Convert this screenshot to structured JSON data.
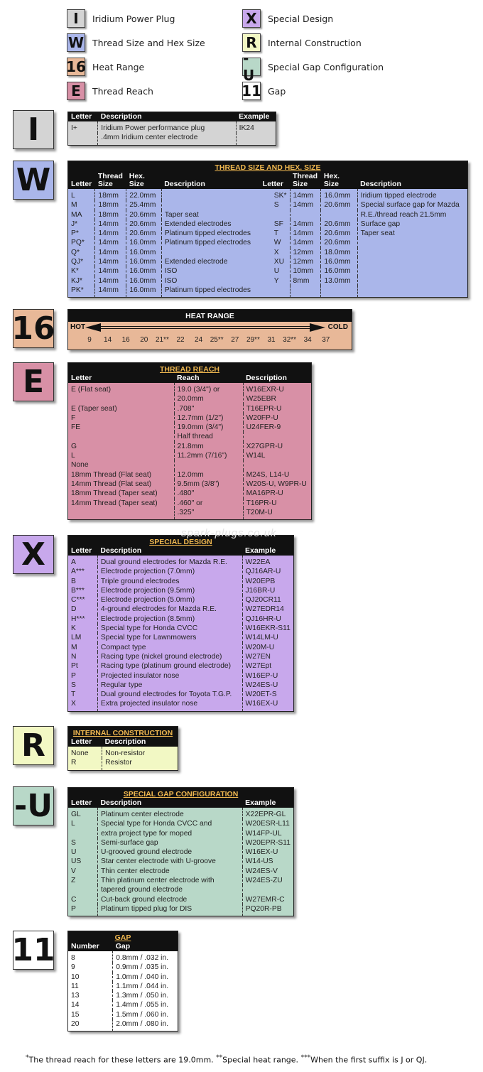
{
  "legend": [
    {
      "code": "I",
      "label": "Iridium Power Plug",
      "color": "#d4d4d4"
    },
    {
      "code": "W",
      "label": "Thread Size and Hex Size",
      "color": "#aab6ea"
    },
    {
      "code": "16",
      "label": "Heat Range",
      "color": "#e8b898"
    },
    {
      "code": "E",
      "label": "Thread Reach",
      "color": "#d890a6"
    },
    {
      "code": "X",
      "label": "Special Design",
      "color": "#c8a8ec"
    },
    {
      "code": "R",
      "label": "Internal Construction",
      "color": "#f2f8c4"
    },
    {
      "code": "-U",
      "label": "Special Gap Configuration",
      "color": "#b8d8c8"
    },
    {
      "code": "11",
      "label": "Gap",
      "color": "#ffffff"
    }
  ],
  "watermark": "spark-plugs.co.uk",
  "tables": {
    "I": {
      "title": "",
      "headers": [
        "Letter",
        "Description",
        "Example"
      ],
      "rows": [
        [
          "I+",
          "Iridium Power performance plug",
          "IK24"
        ],
        [
          "",
          ".4mm Iridium center electrode",
          ""
        ]
      ]
    },
    "W": {
      "title": "THREAD SIZE AND HEX. SIZE",
      "headers": [
        "Letter",
        "Thread\nSize",
        "Hex.\nSize",
        "Description",
        "Letter",
        "Thread\nSize",
        "Hex.\nSize",
        "Description"
      ],
      "rows": [
        [
          "L",
          "18mm",
          "22.0mm",
          "",
          "SK*",
          "14mm",
          "16.0mm",
          "Iridium tipped electrode"
        ],
        [
          "M",
          "18mm",
          "25.4mm",
          "",
          "S",
          "14mm",
          "20.6mm",
          "Special surface gap for Mazda"
        ],
        [
          "MA",
          "18mm",
          "20.6mm",
          "Taper seat",
          "",
          "",
          "",
          "R.E./thread reach 21.5mm"
        ],
        [
          "J*",
          "14mm",
          "20.6mm",
          "Extended electrodes",
          "SF",
          "14mm",
          "20.6mm",
          "Surface gap"
        ],
        [
          "P*",
          "14mm",
          "20.6mm",
          "Platinum tipped electrodes",
          "T",
          "14mm",
          "20.6mm",
          "Taper seat"
        ],
        [
          "PQ*",
          "14mm",
          "16.0mm",
          "Platinum tipped electrodes",
          "W",
          "14mm",
          "20.6mm",
          ""
        ],
        [
          "Q*",
          "14mm",
          "16.0mm",
          "",
          "X",
          "12mm",
          "18.0mm",
          ""
        ],
        [
          "QJ*",
          "14mm",
          "16.0mm",
          "Extended electrode",
          "XU",
          "12mm",
          "16.0mm",
          ""
        ],
        [
          "K*",
          "14mm",
          "16.0mm",
          "ISO",
          "U",
          "10mm",
          "16.0mm",
          ""
        ],
        [
          "KJ*",
          "14mm",
          "16.0mm",
          "ISO",
          "Y",
          "8mm",
          "13.0mm",
          ""
        ],
        [
          "PK*",
          "14mm",
          "16.0mm",
          "Platinum tipped electrodes",
          "",
          "",
          "",
          ""
        ]
      ]
    },
    "E": {
      "title": "THREAD REACH",
      "headers": [
        "Letter",
        "Reach",
        "Description"
      ],
      "rows": [
        [
          "E (Flat seat)",
          "19.0 (3/4\") or",
          "W16EXR-U"
        ],
        [
          "",
          "20.0mm",
          "W25EBR"
        ],
        [
          "E (Taper seat)",
          ".708\"",
          "T16EPR-U"
        ],
        [
          "F",
          "12.7mm (1/2\")",
          "W20FP-U"
        ],
        [
          "FE",
          "19.0mm (3/4\")",
          "U24FER-9"
        ],
        [
          "",
          "Half thread",
          ""
        ],
        [
          "G",
          "21.8mm",
          "X27GPR-U"
        ],
        [
          "L",
          "11.2mm (7/16\")",
          "W14L"
        ],
        [
          "None",
          "",
          ""
        ],
        [
          "18mm Thread (Flat seat)",
          "12.0mm",
          "M24S, L14-U"
        ],
        [
          "14mm Thread (Flat seat)",
          "9.5mm (3/8\")",
          "W20S-U, W9PR-U"
        ],
        [
          "18mm Thread (Taper seat)",
          ".480\"",
          "MA16PR-U"
        ],
        [
          "14mm Thread (Taper seat)",
          ".460\" or",
          "T16PR-U"
        ],
        [
          "",
          ".325\"",
          "T20M-U"
        ]
      ]
    },
    "X": {
      "title": "SPECIAL DESIGN",
      "headers": [
        "Letter",
        "Description",
        "Example"
      ],
      "rows": [
        [
          "A",
          "Dual ground electrodes for Mazda R.E.",
          "W22EA"
        ],
        [
          "A***",
          "Electrode projection (7.0mm)",
          "QJ16AR-U"
        ],
        [
          "B",
          "Triple ground electrodes",
          "W20EPB"
        ],
        [
          "B***",
          "Electrode projection (9.5mm)",
          "J16BR-U"
        ],
        [
          "C***",
          "Electrode projection (5.0mm)",
          "QJ20CR11"
        ],
        [
          "D",
          "4-ground electrodes for Mazda R.E.",
          "W27EDR14"
        ],
        [
          "H***",
          "Electrode projection (8.5mm)",
          "QJ16HR-U"
        ],
        [
          "K",
          "Special type for Honda CVCC",
          "W16EKR-S11"
        ],
        [
          "LM",
          "Special type for Lawnmowers",
          "W14LM-U"
        ],
        [
          "M",
          "Compact type",
          "W20M-U"
        ],
        [
          "N",
          "Racing type (nickel ground electrode)",
          "W27EN"
        ],
        [
          "Pt",
          "Racing type (platinum ground electrode)",
          "W27Ept"
        ],
        [
          "P",
          "Projected insulator nose",
          "W16EP-U"
        ],
        [
          "S",
          "Regular type",
          "W24ES-U"
        ],
        [
          "T",
          "Dual ground electrodes for Toyota T.G.P.",
          "W20ET-S"
        ],
        [
          "X",
          "Extra projected insulator nose",
          "W16EX-U"
        ]
      ]
    },
    "R": {
      "title": "INTERNAL CONSTRUCTION",
      "headers": [
        "Letter",
        "Description"
      ],
      "rows": [
        [
          "None",
          "Non-resistor"
        ],
        [
          "R",
          "Resistor"
        ]
      ]
    },
    "U": {
      "title": "SPECIAL GAP CONFIGURATION",
      "headers": [
        "Letter",
        "Description",
        "Example"
      ],
      "rows": [
        [
          "GL",
          "Platinum center electrode",
          "X22EPR-GL"
        ],
        [
          "L",
          "Special type for Honda CVCC and",
          "W20ESR-L11"
        ],
        [
          "",
          "extra project type for moped",
          "W14FP-UL"
        ],
        [
          "S",
          "Semi-surface gap",
          "W20EPR-S11"
        ],
        [
          "U",
          "U-grooved ground electrode",
          "W16EX-U"
        ],
        [
          "US",
          "Star center electrode with U-groove",
          "W14-US"
        ],
        [
          "V",
          "Thin center electrode",
          "W24ES-V"
        ],
        [
          "Z",
          "Thin platinum center electrode with",
          "W24ES-ZU"
        ],
        [
          "",
          "tapered ground electrode",
          ""
        ],
        [
          "C",
          "Cut-back ground electrode",
          "W27EMR-C"
        ],
        [
          "P",
          "Platinum tipped plug for DIS",
          "PQ20R-PB"
        ]
      ]
    },
    "G": {
      "title": "GAP",
      "headers": [
        "Number",
        "Gap"
      ],
      "rows": [
        [
          "8",
          "0.8mm / .032 in."
        ],
        [
          "9",
          "0.9mm / .035 in."
        ],
        [
          "10",
          "1.0mm / .040 in."
        ],
        [
          "11",
          "1.1mm / .044 in."
        ],
        [
          "13",
          "1.3mm / .050 in."
        ],
        [
          "14",
          "1.4mm / .055 in."
        ],
        [
          "15",
          "1.5mm / .060 in."
        ],
        [
          "20",
          "2.0mm / .080 in."
        ]
      ]
    }
  },
  "heat_range": {
    "title": "HEAT RANGE",
    "hot": "HOT",
    "cold": "COLD",
    "values": [
      "9",
      "14",
      "16",
      "20",
      "21**",
      "22",
      "24",
      "25**",
      "27",
      "29**",
      "31",
      "32**",
      "34",
      "37"
    ]
  },
  "footnotes": {
    "m1": "*",
    "t1": "The thread reach for these letters are 19.0mm.",
    "m2": "**",
    "t2": "Special heat range.",
    "m3": "***",
    "t3": "When the first suffix is J or QJ."
  }
}
